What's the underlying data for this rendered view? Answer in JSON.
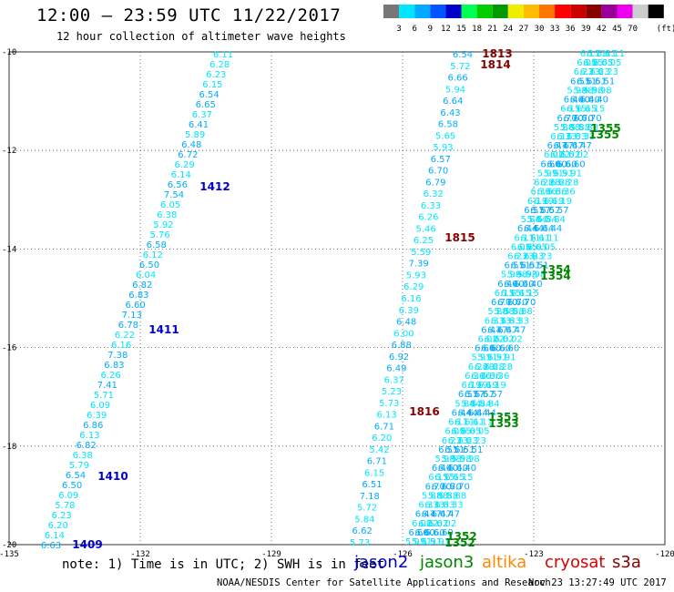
{
  "header": {
    "title": "12:00 – 23:59 UTC 11/22/2017",
    "subtitle": "12 hour collection of altimeter wave heights"
  },
  "legend": {
    "unit": "(ft)",
    "bins": [
      {
        "label": "",
        "color": "#777777"
      },
      {
        "label": "3",
        "color": "#00e5ff"
      },
      {
        "label": "6",
        "color": "#00aaff"
      },
      {
        "label": "9",
        "color": "#0055ff"
      },
      {
        "label": "12",
        "color": "#0000cc"
      },
      {
        "label": "15",
        "color": "#00ff55"
      },
      {
        "label": "18",
        "color": "#00cc00"
      },
      {
        "label": "21",
        "color": "#009900"
      },
      {
        "label": "24",
        "color": "#eeee00"
      },
      {
        "label": "27",
        "color": "#ffbb00"
      },
      {
        "label": "30",
        "color": "#ff7700"
      },
      {
        "label": "33",
        "color": "#ff0000"
      },
      {
        "label": "36",
        "color": "#cc0000"
      },
      {
        "label": "39",
        "color": "#880000"
      },
      {
        "label": "42",
        "color": "#990099"
      },
      {
        "label": "45",
        "color": "#ee00ee"
      },
      {
        "label": "70",
        "color": "#cccccc"
      },
      {
        "label": "",
        "color": "#000000"
      }
    ]
  },
  "axes": {
    "lon_ticks": [
      "-135",
      "-132",
      "-129",
      "-126",
      "-123",
      "-120"
    ],
    "lat_ticks": [
      "-10",
      "-12",
      "-14",
      "-16",
      "-18",
      "-20"
    ]
  },
  "colors": {
    "jason2": "#0000cc",
    "jason3": "#008800",
    "altika": "#ff8800",
    "cryosat": "#dd0000",
    "s3a": "#880000",
    "swh_low": "#00aaff",
    "swh_mid": "#00e5ff"
  },
  "tracks": {
    "jason2": {
      "values": [
        "6.11",
        "6.28",
        "6.23",
        "6.15",
        "6.54",
        "6.65",
        "6.37",
        "6.41",
        "5.89",
        "6.48",
        "6.72",
        "6.29",
        "6.14",
        "6.56",
        "7.54",
        "6.05",
        "6.38",
        "5.92",
        "5.76",
        "6.58",
        "6.12",
        "6.50",
        "6.04",
        "6.82",
        "6.83",
        "6.60",
        "7.13",
        "6.78",
        "6.22",
        "6.16",
        "7.38",
        "6.83",
        "6.26",
        "7.41",
        "5.71",
        "6.09",
        "6.39",
        "6.86",
        "6.13",
        "6.82",
        "6.38",
        "5.79",
        "6.54",
        "6.50",
        "6.09",
        "5.78",
        "6.23",
        "6.20",
        "6.14",
        "6.63"
      ],
      "times": [
        "1412",
        "1411",
        "1410",
        "1409"
      ]
    },
    "s3a": {
      "values": [
        "6.54",
        "5.72",
        "6.66",
        "5.94",
        "6.64",
        "6.43",
        "6.58",
        "5.65",
        "5.93",
        "6.57",
        "6.70",
        "6.79",
        "6.32",
        "6.33",
        "6.26",
        "5.46",
        "6.25",
        "5.59",
        "7.39",
        "5.93",
        "6.29",
        "6.16",
        "6.39",
        "6.48",
        "6.00",
        "6.88",
        "6.92",
        "6.49",
        "6.37",
        "5.23",
        "5.73",
        "6.13",
        "6.71",
        "6.20",
        "5.42",
        "6.71",
        "6.15",
        "6.51",
        "7.18",
        "5.72",
        "5.84",
        "6.62",
        "5.73"
      ],
      "times": [
        "1813",
        "1814",
        "1815",
        "1816"
      ]
    },
    "jason3": {
      "values": [
        "6.11",
        "6.05",
        "6.23",
        "6.51",
        "5.98",
        "6.40",
        "6.15",
        "6.70",
        "5.88",
        "6.33",
        "6.47",
        "6.02",
        "6.60",
        "5.91",
        "6.28",
        "6.36",
        "6.19",
        "6.57",
        "5.84",
        "6.44"
      ],
      "times": [
        "1355",
        "1355",
        "1354",
        "1354",
        "1353",
        "1353",
        "1352",
        "1352"
      ]
    }
  },
  "footer": {
    "note": "note: 1) Time is in UTC; 2) SWH is in feet",
    "satellites": [
      "jason2",
      "jason3",
      "altika",
      "cryosat",
      "s3a"
    ],
    "credit": "NOAA/NESDIS Center for Satellite Applications and Research",
    "timestamp": "Nov 23 13:27:49 UTC 2017"
  }
}
